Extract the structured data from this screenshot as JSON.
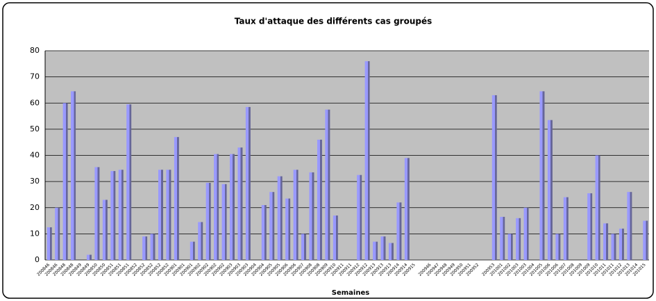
{
  "chart_data": {
    "type": "bar",
    "title": "Taux d'attaque des différents cas groupés",
    "x_label": "Semaines",
    "categories": [
      "200846",
      "200846",
      "200848",
      "200848",
      "200849",
      "200849",
      "200850",
      "200850",
      "200851",
      "200851",
      "200851",
      "200852",
      "200852",
      "200852",
      "200852",
      "200852",
      "200901",
      "200901",
      "200901",
      "200902",
      "200902",
      "200902",
      "200902",
      "200903",
      "200903",
      "200903",
      "200904",
      "200904",
      "200905",
      "200905",
      "200906",
      "200906",
      "200907",
      "200908",
      "200908",
      "200909",
      "200910",
      "200911",
      "200911",
      "200912",
      "200912",
      "200913",
      "200913",
      "200913",
      "200914",
      "200914",
      "200915",
      null,
      "200946",
      "200947",
      "200948",
      "200949",
      "200950",
      "200951",
      "200952",
      null,
      "200953",
      "201001",
      "201002",
      "201003",
      "201003",
      "201004",
      "201005",
      "201006",
      "201006",
      "201007",
      "201008",
      "201009",
      "201009",
      "201010",
      "201011",
      "201011",
      "201012",
      "201013",
      "201014",
      "201015"
    ],
    "values": [
      12.5,
      20,
      60,
      64.5,
      null,
      2,
      35.5,
      23,
      34,
      34.5,
      59.5,
      null,
      9,
      10,
      34.5,
      34.5,
      47,
      null,
      7,
      14.5,
      29.5,
      40.5,
      29,
      40.5,
      43,
      58.5,
      null,
      21,
      26,
      32,
      23.5,
      34.5,
      10,
      33.5,
      46,
      57.5,
      17,
      null,
      null,
      32.5,
      76,
      7,
      9,
      6.5,
      22,
      39,
      null,
      null,
      null,
      null,
      null,
      null,
      null,
      null,
      null,
      null,
      63,
      16.5,
      10,
      16,
      20,
      null,
      64.5,
      53.5,
      10,
      24,
      null,
      null,
      25.5,
      40,
      14,
      10,
      12,
      26,
      null,
      15
    ],
    "color": "#9999ff",
    "ylim": [
      0,
      80
    ],
    "yticks": [
      0,
      10,
      20,
      30,
      40,
      50,
      60,
      70,
      80
    ],
    "grid": true
  }
}
